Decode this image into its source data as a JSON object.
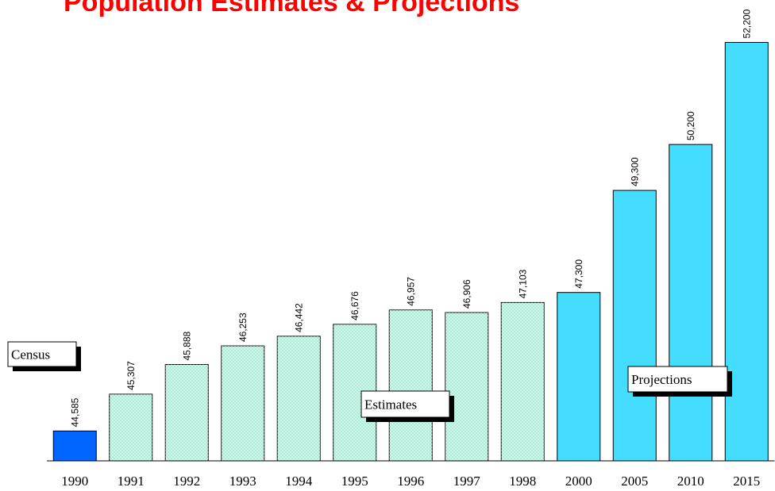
{
  "chart_data": {
    "type": "bar",
    "title": "Population Estimates & Projections",
    "categories": [
      "1990",
      "1991",
      "1992",
      "1993",
      "1994",
      "1995",
      "1996",
      "1997",
      "1998",
      "2000",
      "2005",
      "2010",
      "2015"
    ],
    "values": [
      44585,
      45307,
      45888,
      46253,
      46442,
      46676,
      46957,
      46906,
      47103,
      47300,
      49300,
      50200,
      52200
    ],
    "value_labels": [
      "44,585",
      "45,307",
      "45,888",
      "46,253",
      "46,442",
      "46,676",
      "46,957",
      "46,906",
      "47,103",
      "47,300",
      "49,300",
      "50,200",
      "52,200"
    ],
    "colors": [
      "#0066ff",
      "#a8ecd8",
      "#a8ecd8",
      "#a8ecd8",
      "#a8ecd8",
      "#a8ecd8",
      "#a8ecd8",
      "#a8ecd8",
      "#a8ecd8",
      "#44ddff",
      "#44ddff",
      "#44ddff",
      "#44ddff"
    ],
    "ylim": [
      44000,
      53000
    ],
    "annotations": [
      "Census",
      "Estimates",
      "Projections"
    ]
  }
}
